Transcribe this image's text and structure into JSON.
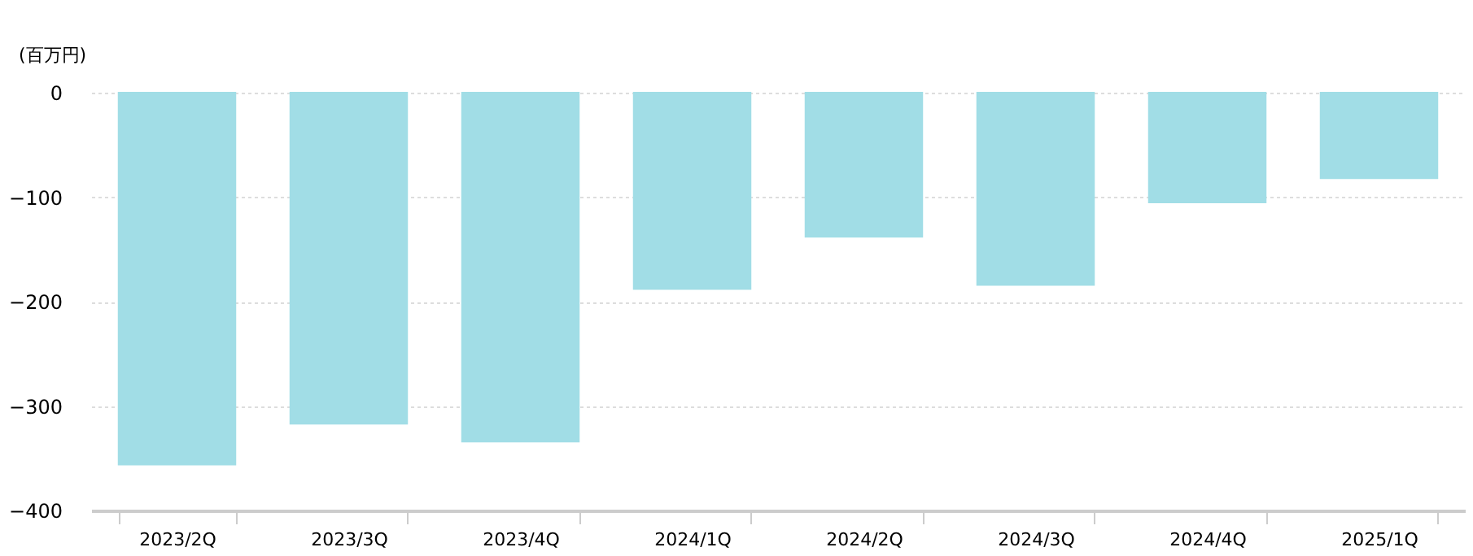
{
  "chart_data": {
    "type": "bar",
    "ylabel": "(百万円)",
    "categories": [
      "2023/2Q",
      "2023/3Q",
      "2023/4Q",
      "2024/1Q",
      "2024/2Q",
      "2024/3Q",
      "2024/4Q",
      "2025/1Q"
    ],
    "values": [
      -356,
      -317,
      -334,
      -188,
      -138,
      -184,
      -105,
      -82
    ],
    "color": "#a1dde6",
    "ylim": [
      -400,
      0
    ],
    "yticks": [
      0,
      -100,
      -200,
      -300,
      -400
    ],
    "grid": "y"
  }
}
